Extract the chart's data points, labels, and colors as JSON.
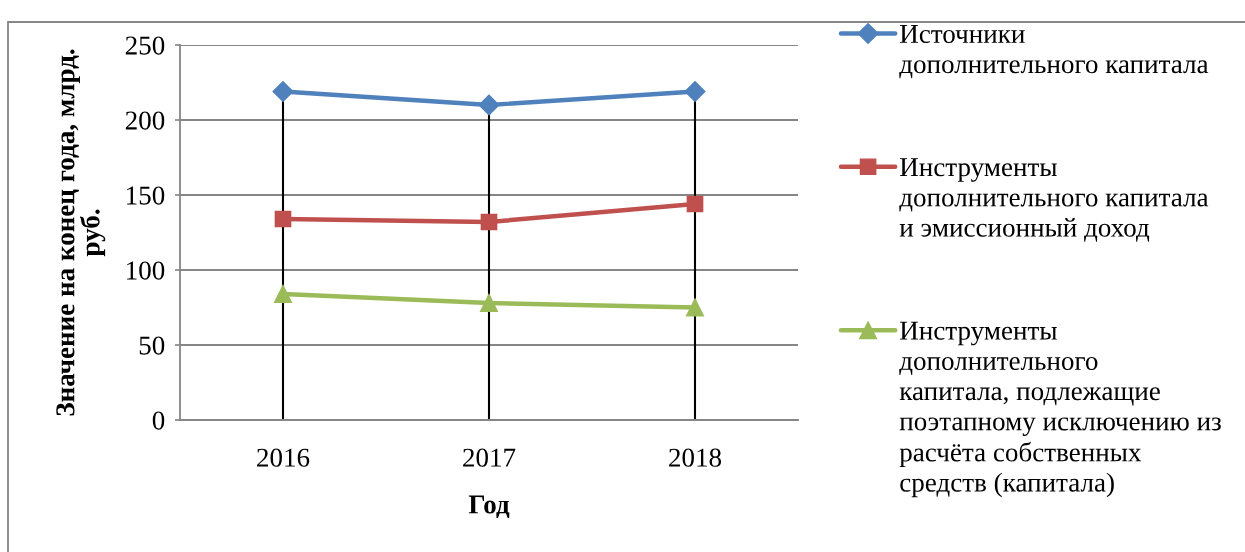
{
  "chart_data": {
    "type": "line",
    "xlabel": "Год",
    "ylabel": "Значение на конец года, млрд.\nруб.",
    "categories": [
      "2016",
      "2017",
      "2018"
    ],
    "series": [
      {
        "name": "Источники\nдополнительного капитала",
        "color": "#4f81bd",
        "marker": "diamond",
        "values": [
          219,
          210,
          219
        ]
      },
      {
        "name": "Инструменты\nдополнительного капитала\nи эмиссионный доход",
        "color": "#c0504d",
        "marker": "square",
        "values": [
          134,
          132,
          144
        ]
      },
      {
        "name": "Инструменты\nдополнительного\nкапитала, подлежащие\nпоэтапному исключению из\nрасчёта собственных\nсредств (капитала)",
        "color": "#9bbb59",
        "marker": "triangle",
        "values": [
          84,
          78,
          75
        ]
      }
    ],
    "ylim": [
      0,
      250
    ],
    "yticks": [
      0,
      50,
      100,
      150,
      200,
      250
    ],
    "ref_lines": [
      {
        "axis": "x",
        "value": "2016",
        "color": "#000000"
      },
      {
        "axis": "x",
        "value": "2017",
        "color": "#000000"
      },
      {
        "axis": "x",
        "value": "2018",
        "color": "#000000"
      }
    ],
    "grid": "y",
    "legend": "right",
    "line_style": "solid"
  }
}
